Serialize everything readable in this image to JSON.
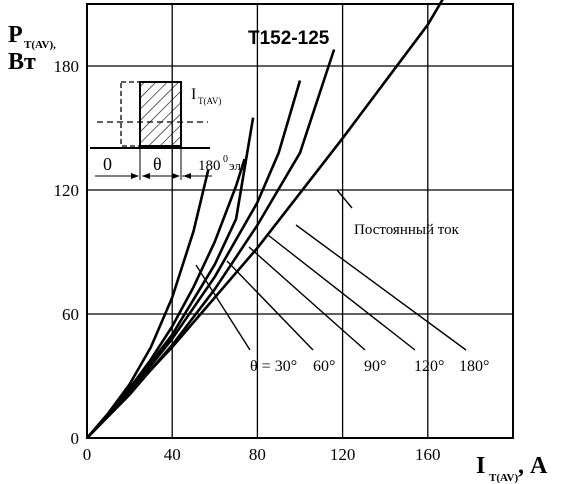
{
  "chart_data": {
    "type": "line",
    "title": "Т152-125",
    "ylabel": {
      "main": "P",
      "sub": "T(AV),",
      "unit": "Вт"
    },
    "xlabel": {
      "main": "I",
      "sub": "T(AV)",
      "unit": ", А"
    },
    "xlim": [
      0,
      200
    ],
    "ylim": [
      0,
      210
    ],
    "xticks": [
      "0",
      "40",
      "80",
      "120",
      "160"
    ],
    "yticks": [
      "0",
      "60",
      "120",
      "180"
    ],
    "grid": true,
    "series": [
      {
        "name": "30°",
        "label_text": "θ = 30°",
        "x": [
          0,
          10,
          20,
          30,
          40,
          50,
          57
        ],
        "y": [
          0,
          12,
          26,
          44,
          68,
          100,
          130
        ]
      },
      {
        "name": "60°",
        "label_text": "60°",
        "x": [
          0,
          10,
          20,
          30,
          40,
          50,
          60,
          70,
          74
        ],
        "y": [
          0,
          11,
          24,
          38,
          54,
          73,
          95,
          122,
          135
        ]
      },
      {
        "name": "90°",
        "label_text": "90°",
        "x": [
          0,
          20,
          40,
          60,
          70,
          78
        ],
        "y": [
          0,
          23,
          50,
          84,
          106,
          155
        ]
      },
      {
        "name": "120°",
        "label_text": "120°",
        "x": [
          0,
          20,
          40,
          60,
          80,
          90,
          100
        ],
        "y": [
          0,
          22,
          48,
          78,
          114,
          138,
          173
        ]
      },
      {
        "name": "180°",
        "label_text": "180°",
        "x": [
          0,
          20,
          40,
          60,
          80,
          100,
          116
        ],
        "y": [
          0,
          21,
          45,
          72,
          103,
          138,
          188
        ]
      },
      {
        "name": "Постоянный ток",
        "label_text": "Постоянный ток",
        "x": [
          0,
          40,
          80,
          120,
          160,
          200
        ],
        "y": [
          0,
          44,
          92,
          145,
          200,
          270
        ]
      }
    ],
    "inset": {
      "labels": [
        "I",
        "T(AV)",
        "0",
        "θ",
        "180",
        "0",
        "эл."
      ]
    }
  }
}
